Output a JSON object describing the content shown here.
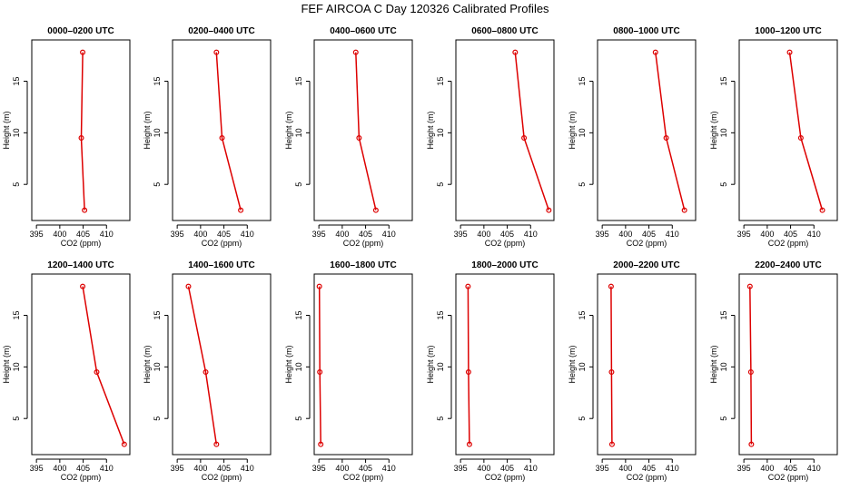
{
  "figure": {
    "title": "FEF AIRCOA C  Day 120326  Calibrated Profiles"
  },
  "chart_data": [
    {
      "type": "line",
      "title": "0000–0200 UTC",
      "xlabel": "CO2 (ppm)",
      "ylabel": "Height (m)",
      "xlim": [
        394,
        415
      ],
      "ylim": [
        1.5,
        19
      ],
      "xticks": [
        395,
        400,
        405,
        410
      ],
      "yticks": [
        5,
        10,
        15
      ],
      "x": [
        405.3,
        404.6,
        404.9
      ],
      "y": [
        2.5,
        9.5,
        17.8
      ]
    },
    {
      "type": "line",
      "title": "0200–0400 UTC",
      "xlabel": "CO2 (ppm)",
      "ylabel": "Height (m)",
      "xlim": [
        394,
        415
      ],
      "ylim": [
        1.5,
        19
      ],
      "xticks": [
        395,
        400,
        405,
        410
      ],
      "yticks": [
        5,
        10,
        15
      ],
      "x": [
        408.6,
        404.6,
        403.4
      ],
      "y": [
        2.5,
        9.5,
        17.8
      ]
    },
    {
      "type": "line",
      "title": "0400–0600 UTC",
      "xlabel": "CO2 (ppm)",
      "ylabel": "Height (m)",
      "xlim": [
        394,
        415
      ],
      "ylim": [
        1.5,
        19
      ],
      "xticks": [
        395,
        400,
        405,
        410
      ],
      "yticks": [
        5,
        10,
        15
      ],
      "x": [
        407.2,
        403.6,
        402.9
      ],
      "y": [
        2.5,
        9.5,
        17.8
      ]
    },
    {
      "type": "line",
      "title": "0600–0800 UTC",
      "xlabel": "CO2 (ppm)",
      "ylabel": "Height (m)",
      "xlim": [
        394,
        415
      ],
      "ylim": [
        1.5,
        19
      ],
      "xticks": [
        395,
        400,
        405,
        410
      ],
      "yticks": [
        5,
        10,
        15
      ],
      "x": [
        413.9,
        408.6,
        406.7
      ],
      "y": [
        2.5,
        9.5,
        17.8
      ]
    },
    {
      "type": "line",
      "title": "0800–1000 UTC",
      "xlabel": "CO2 (ppm)",
      "ylabel": "Height (m)",
      "xlim": [
        394,
        415
      ],
      "ylim": [
        1.5,
        19
      ],
      "xticks": [
        395,
        400,
        405,
        410
      ],
      "yticks": [
        5,
        10,
        15
      ],
      "x": [
        412.6,
        408.7,
        406.4
      ],
      "y": [
        2.5,
        9.5,
        17.8
      ]
    },
    {
      "type": "line",
      "title": "1000–1200 UTC",
      "xlabel": "CO2 (ppm)",
      "ylabel": "Height (m)",
      "xlim": [
        394,
        415
      ],
      "ylim": [
        1.5,
        19
      ],
      "xticks": [
        395,
        400,
        405,
        410
      ],
      "yticks": [
        5,
        10,
        15
      ],
      "x": [
        411.8,
        407.2,
        404.8
      ],
      "y": [
        2.5,
        9.5,
        17.8
      ]
    },
    {
      "type": "line",
      "title": "1200–1400 UTC",
      "xlabel": "CO2 (ppm)",
      "ylabel": "Height (m)",
      "xlim": [
        394,
        415
      ],
      "ylim": [
        1.5,
        19
      ],
      "xticks": [
        395,
        400,
        405,
        410
      ],
      "yticks": [
        5,
        10,
        15
      ],
      "x": [
        413.8,
        407.9,
        404.9
      ],
      "y": [
        2.5,
        9.5,
        17.8
      ]
    },
    {
      "type": "line",
      "title": "1400–1600 UTC",
      "xlabel": "CO2 (ppm)",
      "ylabel": "Height (m)",
      "xlim": [
        394,
        415
      ],
      "ylim": [
        1.5,
        19
      ],
      "xticks": [
        395,
        400,
        405,
        410
      ],
      "yticks": [
        5,
        10,
        15
      ],
      "x": [
        403.4,
        401.1,
        397.4
      ],
      "y": [
        2.5,
        9.5,
        17.8
      ]
    },
    {
      "type": "line",
      "title": "1600–1800 UTC",
      "xlabel": "CO2 (ppm)",
      "ylabel": "Height (m)",
      "xlim": [
        394,
        415
      ],
      "ylim": [
        1.5,
        19
      ],
      "xticks": [
        395,
        400,
        405,
        410
      ],
      "yticks": [
        5,
        10,
        15
      ],
      "x": [
        395.4,
        395.2,
        395.1
      ],
      "y": [
        2.5,
        9.5,
        17.8
      ]
    },
    {
      "type": "line",
      "title": "1800–2000 UTC",
      "xlabel": "CO2 (ppm)",
      "ylabel": "Height (m)",
      "xlim": [
        394,
        415
      ],
      "ylim": [
        1.5,
        19
      ],
      "xticks": [
        395,
        400,
        405,
        410
      ],
      "yticks": [
        5,
        10,
        15
      ],
      "x": [
        396.9,
        396.7,
        396.6
      ],
      "y": [
        2.5,
        9.5,
        17.8
      ]
    },
    {
      "type": "line",
      "title": "2000–2200 UTC",
      "xlabel": "CO2 (ppm)",
      "ylabel": "Height (m)",
      "xlim": [
        394,
        415
      ],
      "ylim": [
        1.5,
        19
      ],
      "xticks": [
        395,
        400,
        405,
        410
      ],
      "yticks": [
        5,
        10,
        15
      ],
      "x": [
        397.1,
        397.0,
        396.9
      ],
      "y": [
        2.5,
        9.5,
        17.8
      ]
    },
    {
      "type": "line",
      "title": "2200–2400 UTC",
      "xlabel": "CO2 (ppm)",
      "ylabel": "Height (m)",
      "xlim": [
        394,
        415
      ],
      "ylim": [
        1.5,
        19
      ],
      "xticks": [
        395,
        400,
        405,
        410
      ],
      "yticks": [
        5,
        10,
        15
      ],
      "x": [
        396.6,
        396.5,
        396.3
      ],
      "y": [
        2.5,
        9.5,
        17.8
      ]
    }
  ],
  "colors": {
    "line": "#dd0000",
    "axis": "#000000",
    "background": "#ffffff"
  }
}
